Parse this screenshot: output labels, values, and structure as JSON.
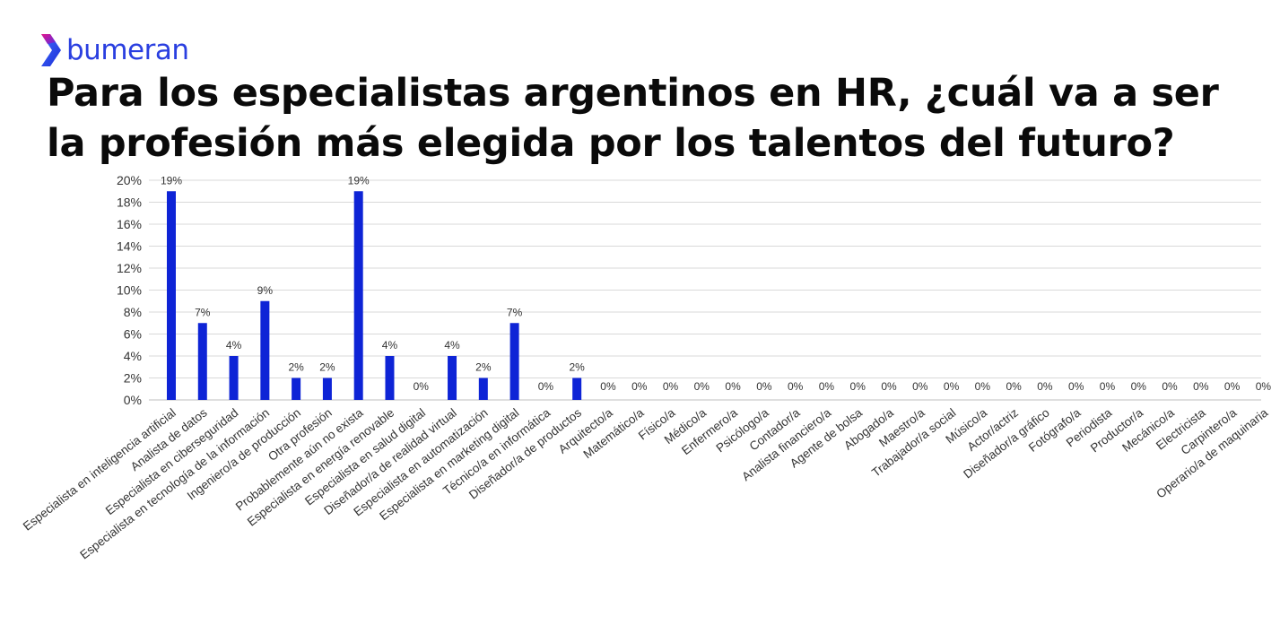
{
  "brand": {
    "name": "bumeran",
    "logo_mark": "chevron-arrow-logo",
    "color": "#2a3fe0"
  },
  "title_lines": [
    "Para los especialistas argentinos en HR, ¿cuál va a ser",
    "la profesión más elegida por los talentos del futuro?"
  ],
  "chart_data": {
    "type": "bar",
    "bar_color": "#0e24d6",
    "grid": true,
    "ylim": [
      0,
      20
    ],
    "yticks": [
      0,
      2,
      4,
      6,
      8,
      10,
      12,
      14,
      16,
      18,
      20
    ],
    "y_tick_suffix": "%",
    "value_label_suffix": "%",
    "categories": [
      "Especialista en inteligencia artificial",
      "Analista de datos",
      "Especialista en ciberseguridad",
      "Especialista en tecnología de la información",
      "Ingeniero/a de producción",
      "Otra profesión",
      "Probablemente aún no exista",
      "Especialista en energía renovable",
      "Especialista en salud digital",
      "Diseñador/a de realidad virtual",
      "Especialista en automatización",
      "Especialista en marketing digital",
      "Técnico/a en informática",
      "Diseñador/a de productos",
      "Arquitecto/a",
      "Matemático/a",
      "Físico/a",
      "Médico/a",
      "Enfermero/a",
      "Psicólogo/a",
      "Contador/a",
      "Analista financiero/a",
      "Agente de bolsa",
      "Abogado/a",
      "Maestro/a",
      "Trabajador/a social",
      "Músico/a",
      "Actor/actriz",
      "Diseñador/a gráfico",
      "Fotógrafo/a",
      "Periodista",
      "Productor/a",
      "Mecánico/a",
      "Electricista",
      "Carpintero/a",
      "Operario/a de maquinaria"
    ],
    "values": [
      19,
      7,
      4,
      9,
      2,
      2,
      19,
      4,
      0,
      4,
      2,
      7,
      0,
      2,
      0,
      0,
      0,
      0,
      0,
      0,
      0,
      0,
      0,
      0,
      0,
      0,
      0,
      0,
      0,
      0,
      0,
      0,
      0,
      0,
      0,
      0
    ]
  }
}
